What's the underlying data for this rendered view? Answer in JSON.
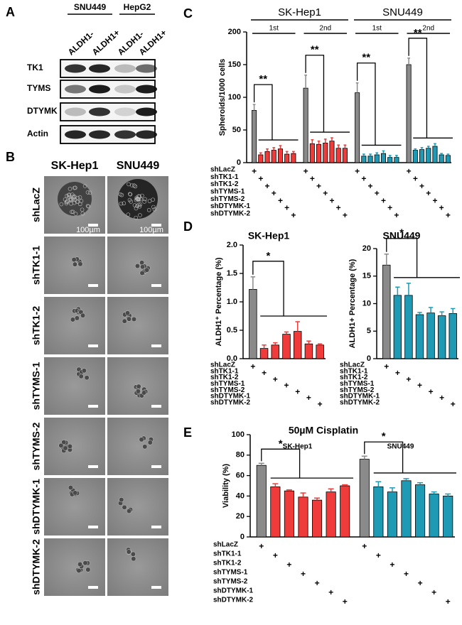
{
  "panel_a": {
    "letter": "A",
    "cell_lines": [
      "SNU449",
      "HepG2"
    ],
    "lanes": [
      "ALDH1-",
      "ALDH1+",
      "ALDH1-",
      "ALDH1+"
    ],
    "proteins": [
      "TK1",
      "TYMS",
      "DTYMK",
      "Actin"
    ]
  },
  "panel_b": {
    "letter": "B",
    "columns": [
      "SK-Hep1",
      "SNU449"
    ],
    "rows": [
      "shLacZ",
      "shTK1-1",
      "shTK1-2",
      "shTYMS-1",
      "shTYMS-2",
      "shDTYMK-1",
      "shDTYMK-2"
    ],
    "scale_label": "100µm"
  },
  "chart_data": [
    {
      "letter": "C",
      "type": "bar",
      "ylabel": "Spheroids/1000 cells",
      "ylim": [
        0,
        200
      ],
      "yticks": [
        0,
        50,
        100,
        150,
        200
      ],
      "headers": [
        "SK-Hep1",
        "SNU449"
      ],
      "treatments": [
        "shLacZ",
        "shTK1-1",
        "shTK1-2",
        "shTYMS-1",
        "shTYMS-2",
        "shDTYMK-1",
        "shDTYMK-2"
      ],
      "mark": "+",
      "groups": [
        {
          "label": "1st",
          "significance": "**",
          "colors": [
            "#8a8a8a",
            "#ef3b39"
          ],
          "values": [
            80,
            12,
            17,
            19,
            21,
            13,
            14
          ],
          "errors": [
            9,
            3,
            4,
            4,
            5,
            4,
            3
          ]
        },
        {
          "label": "2nd",
          "significance": "**",
          "colors": [
            "#8a8a8a",
            "#ef3b39"
          ],
          "values": [
            114,
            29,
            28,
            30,
            33,
            22,
            22
          ],
          "errors": [
            20,
            6,
            5,
            6,
            5,
            5,
            5
          ]
        },
        {
          "label": "1st",
          "significance": "**",
          "colors": [
            "#8a8a8a",
            "#1f9ab4"
          ],
          "values": [
            107,
            10,
            10,
            12,
            14,
            8,
            8
          ],
          "errors": [
            15,
            3,
            3,
            3,
            4,
            3,
            3
          ]
        },
        {
          "label": "2nd",
          "significance": "**",
          "colors": [
            "#8a8a8a",
            "#1f9ab4"
          ],
          "values": [
            150,
            19,
            20,
            22,
            25,
            12,
            11
          ],
          "errors": [
            10,
            2,
            3,
            3,
            4,
            2,
            2
          ]
        }
      ]
    },
    {
      "letter": "D",
      "type": "bar",
      "title": "SK-Hep1",
      "ylabel": "ALDH1⁺ Percentage (%)",
      "ylim": [
        0,
        2
      ],
      "yticks": [
        {
          "value": 0,
          "label": "0.0"
        },
        {
          "value": 0.5,
          "label": "0.5"
        },
        {
          "value": 1,
          "label": "1.0"
        },
        {
          "value": 1.5,
          "label": "1.5"
        },
        {
          "value": 2,
          "label": "2.0"
        }
      ],
      "treatments": [
        "shLacZ",
        "shTK1-1",
        "shTK1-2",
        "shTYMS-1",
        "shTYMS-2",
        "shDTYMK-1",
        "shDTYMK-2"
      ],
      "mark": "+",
      "groups": [
        {
          "significance": "*",
          "colors": [
            "#8a8a8a",
            "#ef3b39"
          ],
          "values": [
            1.22,
            0.18,
            0.24,
            0.43,
            0.48,
            0.26,
            0.24
          ],
          "errors": [
            0.22,
            0.06,
            0.04,
            0.04,
            0.17,
            0.05,
            0.02
          ]
        }
      ]
    },
    {
      "type": "bar",
      "title": "SNU449",
      "ylabel": "ALDH1+ Percentage (%)",
      "ylim": [
        0,
        20
      ],
      "yticks": [
        0,
        5,
        10,
        15,
        20
      ],
      "treatments": [
        "shLacZ",
        "shTK1-1",
        "shTK1-2",
        "shTYMS-1",
        "shTYMS-2",
        "shDTYMK-1",
        "shDTYMK-2"
      ],
      "mark": "+",
      "groups": [
        {
          "significance": "*",
          "colors": [
            "#8a8a8a",
            "#1f9ab4"
          ],
          "values": [
            17,
            11.5,
            11.5,
            8,
            8.3,
            7.8,
            8.2
          ],
          "errors": [
            2,
            1.5,
            2.2,
            0.4,
            1,
            0.7,
            0.9
          ]
        }
      ]
    },
    {
      "letter": "E",
      "type": "bar",
      "title": "50µM Cisplatin",
      "ylabel": "Viability (%)",
      "ylim": [
        0,
        100
      ],
      "yticks": [
        0,
        20,
        40,
        60,
        80,
        100
      ],
      "treatments": [
        "shLacZ",
        "shTK1-1",
        "shTK1-2",
        "shTYMS-1",
        "shTYMS-2",
        "shDTYMK-1",
        "shDTYMK-2"
      ],
      "mark": "+",
      "groups": [
        {
          "label": "SK-Hep1",
          "significance": "*",
          "colors": [
            "#8a8a8a",
            "#ef3b39"
          ],
          "values": [
            70,
            49,
            45,
            39,
            36,
            44,
            50
          ],
          "errors": [
            2,
            3,
            1,
            4,
            2,
            3,
            1
          ]
        },
        {
          "label": "SNU449",
          "significance": "*",
          "colors": [
            "#8a8a8a",
            "#1f9ab4"
          ],
          "values": [
            76,
            49,
            44,
            55,
            51,
            42,
            40
          ],
          "errors": [
            3,
            5,
            4,
            2,
            2,
            2,
            2
          ]
        }
      ]
    }
  ]
}
